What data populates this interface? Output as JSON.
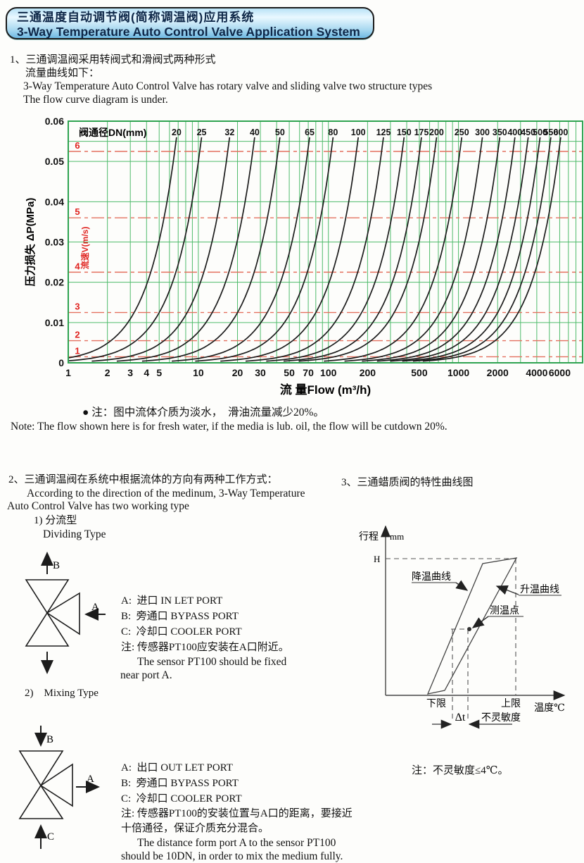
{
  "header": {
    "title_zh": "三通温度自动调节阀(简称调温阀)应用系统",
    "title_en": "3-Way Temperature Auto Control Valve Application System"
  },
  "section1": {
    "line1": "1、三通调温阀采用转阀式和滑阀式两种形式",
    "line2": "流量曲线如下：",
    "line3": "3-Way Temperature Auto Control Valve has rotary valve and sliding valve two structure types",
    "line4": "The flow curve diagram is under."
  },
  "chart_data": {
    "type": "line",
    "title": "阀通径DN(mm)",
    "xlabel": "流 量Flow (m³/h)",
    "ylabel": "压力损失 ΔP(MPa)",
    "velocity_axis_label": "流速V(m/s)",
    "x_scale": "log",
    "xlim": [
      1,
      9000
    ],
    "ylim": [
      0,
      0.06
    ],
    "x_ticks": [
      1,
      2,
      3,
      4,
      5,
      10,
      20,
      30,
      50,
      70,
      100,
      200,
      500,
      1000,
      2000,
      4000,
      6000
    ],
    "y_ticks": [
      0,
      0.01,
      0.02,
      0.03,
      0.04,
      0.05,
      0.06
    ],
    "grid": "on",
    "curve_model": "deltaP_MPa = 0.056 x (Q/q_top)^2 , q_top = flow at curve top (v~6 m/s)",
    "series": [
      {
        "dn": 20,
        "q_top": 6.8
      },
      {
        "dn": 25,
        "q_top": 10.6
      },
      {
        "dn": 32,
        "q_top": 17.4
      },
      {
        "dn": 40,
        "q_top": 27.1
      },
      {
        "dn": 50,
        "q_top": 42.4
      },
      {
        "dn": 65,
        "q_top": 71.7
      },
      {
        "dn": 80,
        "q_top": 108.6
      },
      {
        "dn": 100,
        "q_top": 169.7
      },
      {
        "dn": 125,
        "q_top": 265.1
      },
      {
        "dn": 150,
        "q_top": 381.8
      },
      {
        "dn": 175,
        "q_top": 519.6
      },
      {
        "dn": 200,
        "q_top": 678.6
      },
      {
        "dn": 250,
        "q_top": 1060.3
      },
      {
        "dn": 300,
        "q_top": 1526.8
      },
      {
        "dn": 350,
        "q_top": 2078.2
      },
      {
        "dn": 400,
        "q_top": 2714.3
      },
      {
        "dn": 450,
        "q_top": 3435.3
      },
      {
        "dn": 500,
        "q_top": 4241.2
      },
      {
        "dn": 550,
        "q_top": 5131.8
      },
      {
        "dn": 600,
        "q_top": 6107.3
      }
    ],
    "velocity_lines": [
      {
        "v": 1,
        "dp": 0.0015
      },
      {
        "v": 2,
        "dp": 0.0055
      },
      {
        "v": 3,
        "dp": 0.0125
      },
      {
        "v": 4,
        "dp": 0.0225
      },
      {
        "v": 5,
        "dp": 0.036
      },
      {
        "v": 6,
        "dp": 0.0525
      }
    ],
    "colors": {
      "grid": "#4fbb6b",
      "border": "#2fa351",
      "curve": "#1c1c1c",
      "velocity_line": "#e4705f",
      "velocity_text": "#e02420",
      "tick_text": "#111111"
    }
  },
  "note": {
    "line1": "● 注：图中流体介质为淡水，  滑油流量减少20%。",
    "line2": "Note: The flow shown here is for fresh water, if the media is lub. oil, the flow will be cutdown 20%."
  },
  "section2": {
    "heading": "2、三通调温阀在系统中根据流体的方向有两种工作方式：",
    "line_en1": "According to the direction of the medinum, 3-Way Temperature",
    "line_en2": "Auto Control Valve has two working type",
    "sub1_zh": "1) 分流型",
    "sub1_en": "Dividing Type",
    "sub2": "2)    Mixing Type"
  },
  "section3": {
    "heading": "3、三通蜡质阀的特性曲线图",
    "note": "注：不灵敏度≤4℃。"
  },
  "dividing": {
    "port_a": "A",
    "port_b": "B",
    "lines": [
      "A:  进口 IN LET PORT",
      "B:  旁通口 BYPASS PORT",
      "C:  冷却口 COOLER PORT",
      "注: 传感器PT100应安装在A口附近。",
      "      The sensor PT100 should be fixed",
      "near port A."
    ]
  },
  "mixing": {
    "port_a": "A",
    "port_b": "B",
    "port_c": "C",
    "lines": [
      "A:  出口 OUT LET PORT",
      "B:  旁通口 BYPASS PORT",
      "C:  冷却口 COOLER PORT",
      "注: 传感器PT100的安装位置与A口的距离，要接近",
      "十倍通径，保证介质充分混合。",
      "      The distance form port A to the sensor PT100",
      "should be 10DN, in order to mix the medium fully."
    ]
  },
  "char_diagram": {
    "y_axis_label": "行程",
    "y_axis_unit": "mm",
    "h_mark": "H",
    "cooling_curve": "降温曲线",
    "heating_curve": "升温曲线",
    "measure_point": "测温点",
    "lower_limit": "下限",
    "upper_limit": "上限",
    "x_axis_label": "温度℃",
    "delta_t": "Δt",
    "insensitivity": "不灵敏度"
  }
}
